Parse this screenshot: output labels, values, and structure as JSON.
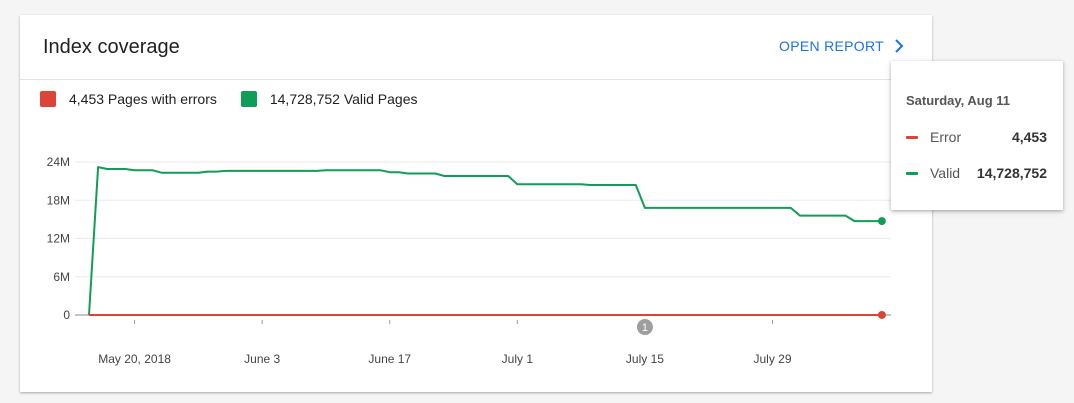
{
  "card": {
    "title": "Index coverage",
    "open_report_label": "OPEN REPORT"
  },
  "legend": {
    "items": [
      {
        "label": "4,453 Pages with errors",
        "color": "#db4437"
      },
      {
        "label": "14,728,752 Valid Pages",
        "color": "#0f9d58"
      }
    ]
  },
  "tooltip": {
    "date": "Saturday, Aug 11",
    "rows": [
      {
        "label": "Error",
        "value": "4,453",
        "color": "#db4437"
      },
      {
        "label": "Valid",
        "value": "14,728,752",
        "color": "#0f9d58"
      }
    ]
  },
  "chart_data": {
    "type": "line",
    "y_ticks": [
      "0",
      "6M",
      "12M",
      "18M",
      "24M"
    ],
    "y_tick_values": [
      0,
      6,
      12,
      18,
      24
    ],
    "ylim": [
      0,
      24
    ],
    "x_ticks": [
      "May 20, 2018",
      "June 3",
      "June 17",
      "July 1",
      "July 15",
      "July 29"
    ],
    "x_tick_days": [
      0,
      14,
      28,
      42,
      56,
      70
    ],
    "xlim": [
      -5,
      83
    ],
    "annotation": {
      "label": "1",
      "day": 56
    },
    "series": [
      {
        "name": "Valid",
        "color": "#0f9d58",
        "points": [
          [
            -5,
            0
          ],
          [
            -4,
            23.2
          ],
          [
            -3,
            22.9
          ],
          [
            -2,
            22.9
          ],
          [
            -1,
            22.9
          ],
          [
            0,
            22.7
          ],
          [
            1,
            22.7
          ],
          [
            2,
            22.7
          ],
          [
            3,
            22.3
          ],
          [
            4,
            22.3
          ],
          [
            5,
            22.3
          ],
          [
            6,
            22.3
          ],
          [
            7,
            22.3
          ],
          [
            8,
            22.5
          ],
          [
            9,
            22.5
          ],
          [
            10,
            22.6
          ],
          [
            11,
            22.6
          ],
          [
            12,
            22.6
          ],
          [
            13,
            22.6
          ],
          [
            14,
            22.6
          ],
          [
            15,
            22.6
          ],
          [
            16,
            22.6
          ],
          [
            17,
            22.6
          ],
          [
            18,
            22.6
          ],
          [
            19,
            22.6
          ],
          [
            20,
            22.6
          ],
          [
            21,
            22.7
          ],
          [
            22,
            22.7
          ],
          [
            23,
            22.7
          ],
          [
            24,
            22.7
          ],
          [
            25,
            22.7
          ],
          [
            26,
            22.7
          ],
          [
            27,
            22.7
          ],
          [
            28,
            22.4
          ],
          [
            29,
            22.4
          ],
          [
            30,
            22.2
          ],
          [
            31,
            22.2
          ],
          [
            32,
            22.2
          ],
          [
            33,
            22.2
          ],
          [
            34,
            21.8
          ],
          [
            35,
            21.8
          ],
          [
            36,
            21.8
          ],
          [
            37,
            21.8
          ],
          [
            38,
            21.8
          ],
          [
            39,
            21.8
          ],
          [
            40,
            21.8
          ],
          [
            41,
            21.8
          ],
          [
            42,
            20.5
          ],
          [
            43,
            20.5
          ],
          [
            44,
            20.5
          ],
          [
            45,
            20.5
          ],
          [
            46,
            20.5
          ],
          [
            47,
            20.5
          ],
          [
            48,
            20.5
          ],
          [
            49,
            20.5
          ],
          [
            50,
            20.4
          ],
          [
            51,
            20.4
          ],
          [
            52,
            20.4
          ],
          [
            53,
            20.4
          ],
          [
            54,
            20.4
          ],
          [
            55,
            20.4
          ],
          [
            56,
            16.8
          ],
          [
            57,
            16.8
          ],
          [
            58,
            16.8
          ],
          [
            59,
            16.8
          ],
          [
            60,
            16.8
          ],
          [
            61,
            16.8
          ],
          [
            62,
            16.8
          ],
          [
            63,
            16.8
          ],
          [
            64,
            16.8
          ],
          [
            65,
            16.8
          ],
          [
            66,
            16.8
          ],
          [
            67,
            16.8
          ],
          [
            68,
            16.8
          ],
          [
            69,
            16.8
          ],
          [
            70,
            16.8
          ],
          [
            71,
            16.8
          ],
          [
            72,
            16.8
          ],
          [
            73,
            15.6
          ],
          [
            74,
            15.6
          ],
          [
            75,
            15.6
          ],
          [
            76,
            15.6
          ],
          [
            77,
            15.6
          ],
          [
            78,
            15.6
          ],
          [
            79,
            14.73
          ],
          [
            80,
            14.73
          ],
          [
            81,
            14.73
          ],
          [
            82,
            14.73
          ]
        ]
      },
      {
        "name": "Error",
        "color": "#db4437",
        "points": [
          [
            -5,
            0.004
          ],
          [
            82,
            0.004453
          ]
        ]
      }
    ]
  }
}
